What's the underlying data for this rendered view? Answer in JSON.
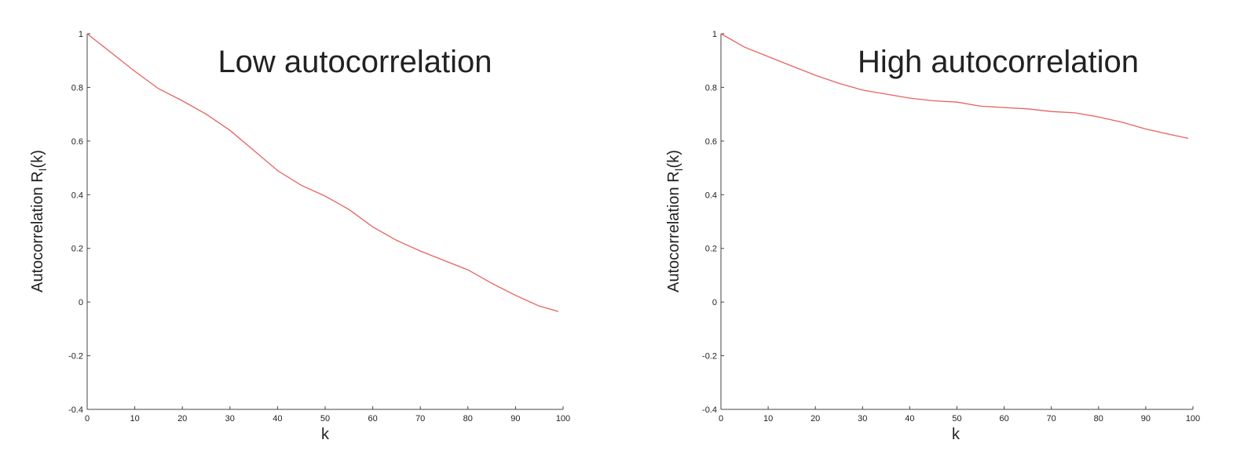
{
  "chart_data": [
    {
      "type": "line",
      "title": "Low autocorrelation",
      "xlabel": "k",
      "ylabel_main": "Autocorrelation R",
      "ylabel_sub": "I",
      "ylabel_tail": "(k)",
      "xlim": [
        0,
        100
      ],
      "ylim": [
        -0.4,
        1
      ],
      "xticks": [
        "0",
        "10",
        "20",
        "30",
        "40",
        "50",
        "60",
        "70",
        "80",
        "90",
        "100"
      ],
      "yticks": [
        "-0.4",
        "-0.2",
        "0",
        "0.2",
        "0.4",
        "0.6",
        "0.8",
        "1"
      ],
      "grid": false,
      "color": "#e8625f",
      "series": [
        {
          "x": [
            0,
            5,
            10,
            15,
            20,
            25,
            30,
            35,
            40,
            45,
            50,
            55,
            60,
            65,
            70,
            75,
            80,
            85,
            90,
            95,
            99
          ],
          "values": [
            1.0,
            0.93,
            0.86,
            0.795,
            0.75,
            0.7,
            0.64,
            0.565,
            0.49,
            0.435,
            0.395,
            0.345,
            0.28,
            0.23,
            0.19,
            0.155,
            0.12,
            0.07,
            0.025,
            -0.015,
            -0.035
          ]
        }
      ]
    },
    {
      "type": "line",
      "title": "High autocorrelation",
      "xlabel": "k",
      "ylabel_main": "Autocorrelation R",
      "ylabel_sub": "I",
      "ylabel_tail": "(k)",
      "xlim": [
        0,
        100
      ],
      "ylim": [
        -0.4,
        1
      ],
      "xticks": [
        "0",
        "10",
        "20",
        "30",
        "40",
        "50",
        "60",
        "70",
        "80",
        "90",
        "100"
      ],
      "yticks": [
        "-0.4",
        "-0.2",
        "0",
        "0.2",
        "0.4",
        "0.6",
        "0.8",
        "1"
      ],
      "grid": false,
      "color": "#e8625f",
      "series": [
        {
          "x": [
            0,
            5,
            10,
            15,
            20,
            25,
            30,
            35,
            40,
            45,
            50,
            55,
            60,
            65,
            70,
            75,
            80,
            85,
            90,
            95,
            99
          ],
          "values": [
            1.0,
            0.95,
            0.915,
            0.88,
            0.845,
            0.815,
            0.79,
            0.775,
            0.76,
            0.75,
            0.745,
            0.73,
            0.725,
            0.72,
            0.71,
            0.705,
            0.69,
            0.67,
            0.645,
            0.625,
            0.61
          ]
        }
      ]
    }
  ]
}
